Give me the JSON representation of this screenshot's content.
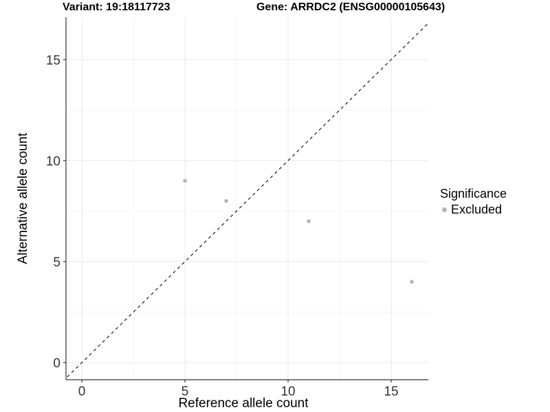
{
  "chart_data": {
    "type": "scatter",
    "title_left": "Variant: 19:18117723",
    "title_right": "Gene: ARRDC2 (ENSG00000105643)",
    "xlabel": "Reference allele count",
    "ylabel": "Alternative allele count",
    "xlim": [
      -0.77,
      16.8
    ],
    "ylim": [
      -0.85,
      17.1
    ],
    "x_major_ticks": [
      0,
      5,
      10,
      15
    ],
    "x_minor_ticks": [
      2.5,
      7.5,
      12.5
    ],
    "y_major_ticks": [
      0,
      5,
      10,
      15
    ],
    "y_minor_ticks": [
      2.5,
      7.5,
      12.5
    ],
    "grid": true,
    "identity_line": {
      "style": "dashed",
      "slope": 1,
      "intercept": 0
    },
    "series": [
      {
        "name": "Excluded",
        "color": "#b5b5b5",
        "points": [
          [
            5,
            9
          ],
          [
            7,
            8
          ],
          [
            11,
            7
          ],
          [
            16,
            4
          ]
        ]
      }
    ],
    "legend": {
      "title": "Significance",
      "position": "right",
      "entries": [
        {
          "label": "Excluded",
          "color": "#b5b5b5"
        }
      ]
    }
  },
  "colors": {
    "background": "#ffffff",
    "point": "#b5b5b5",
    "grid_major": "#e8e8e8",
    "grid_minor": "#f3f3f3",
    "axis_line": "#333333",
    "tick_label": "#333333",
    "identity_line": "#1a1a1a"
  }
}
